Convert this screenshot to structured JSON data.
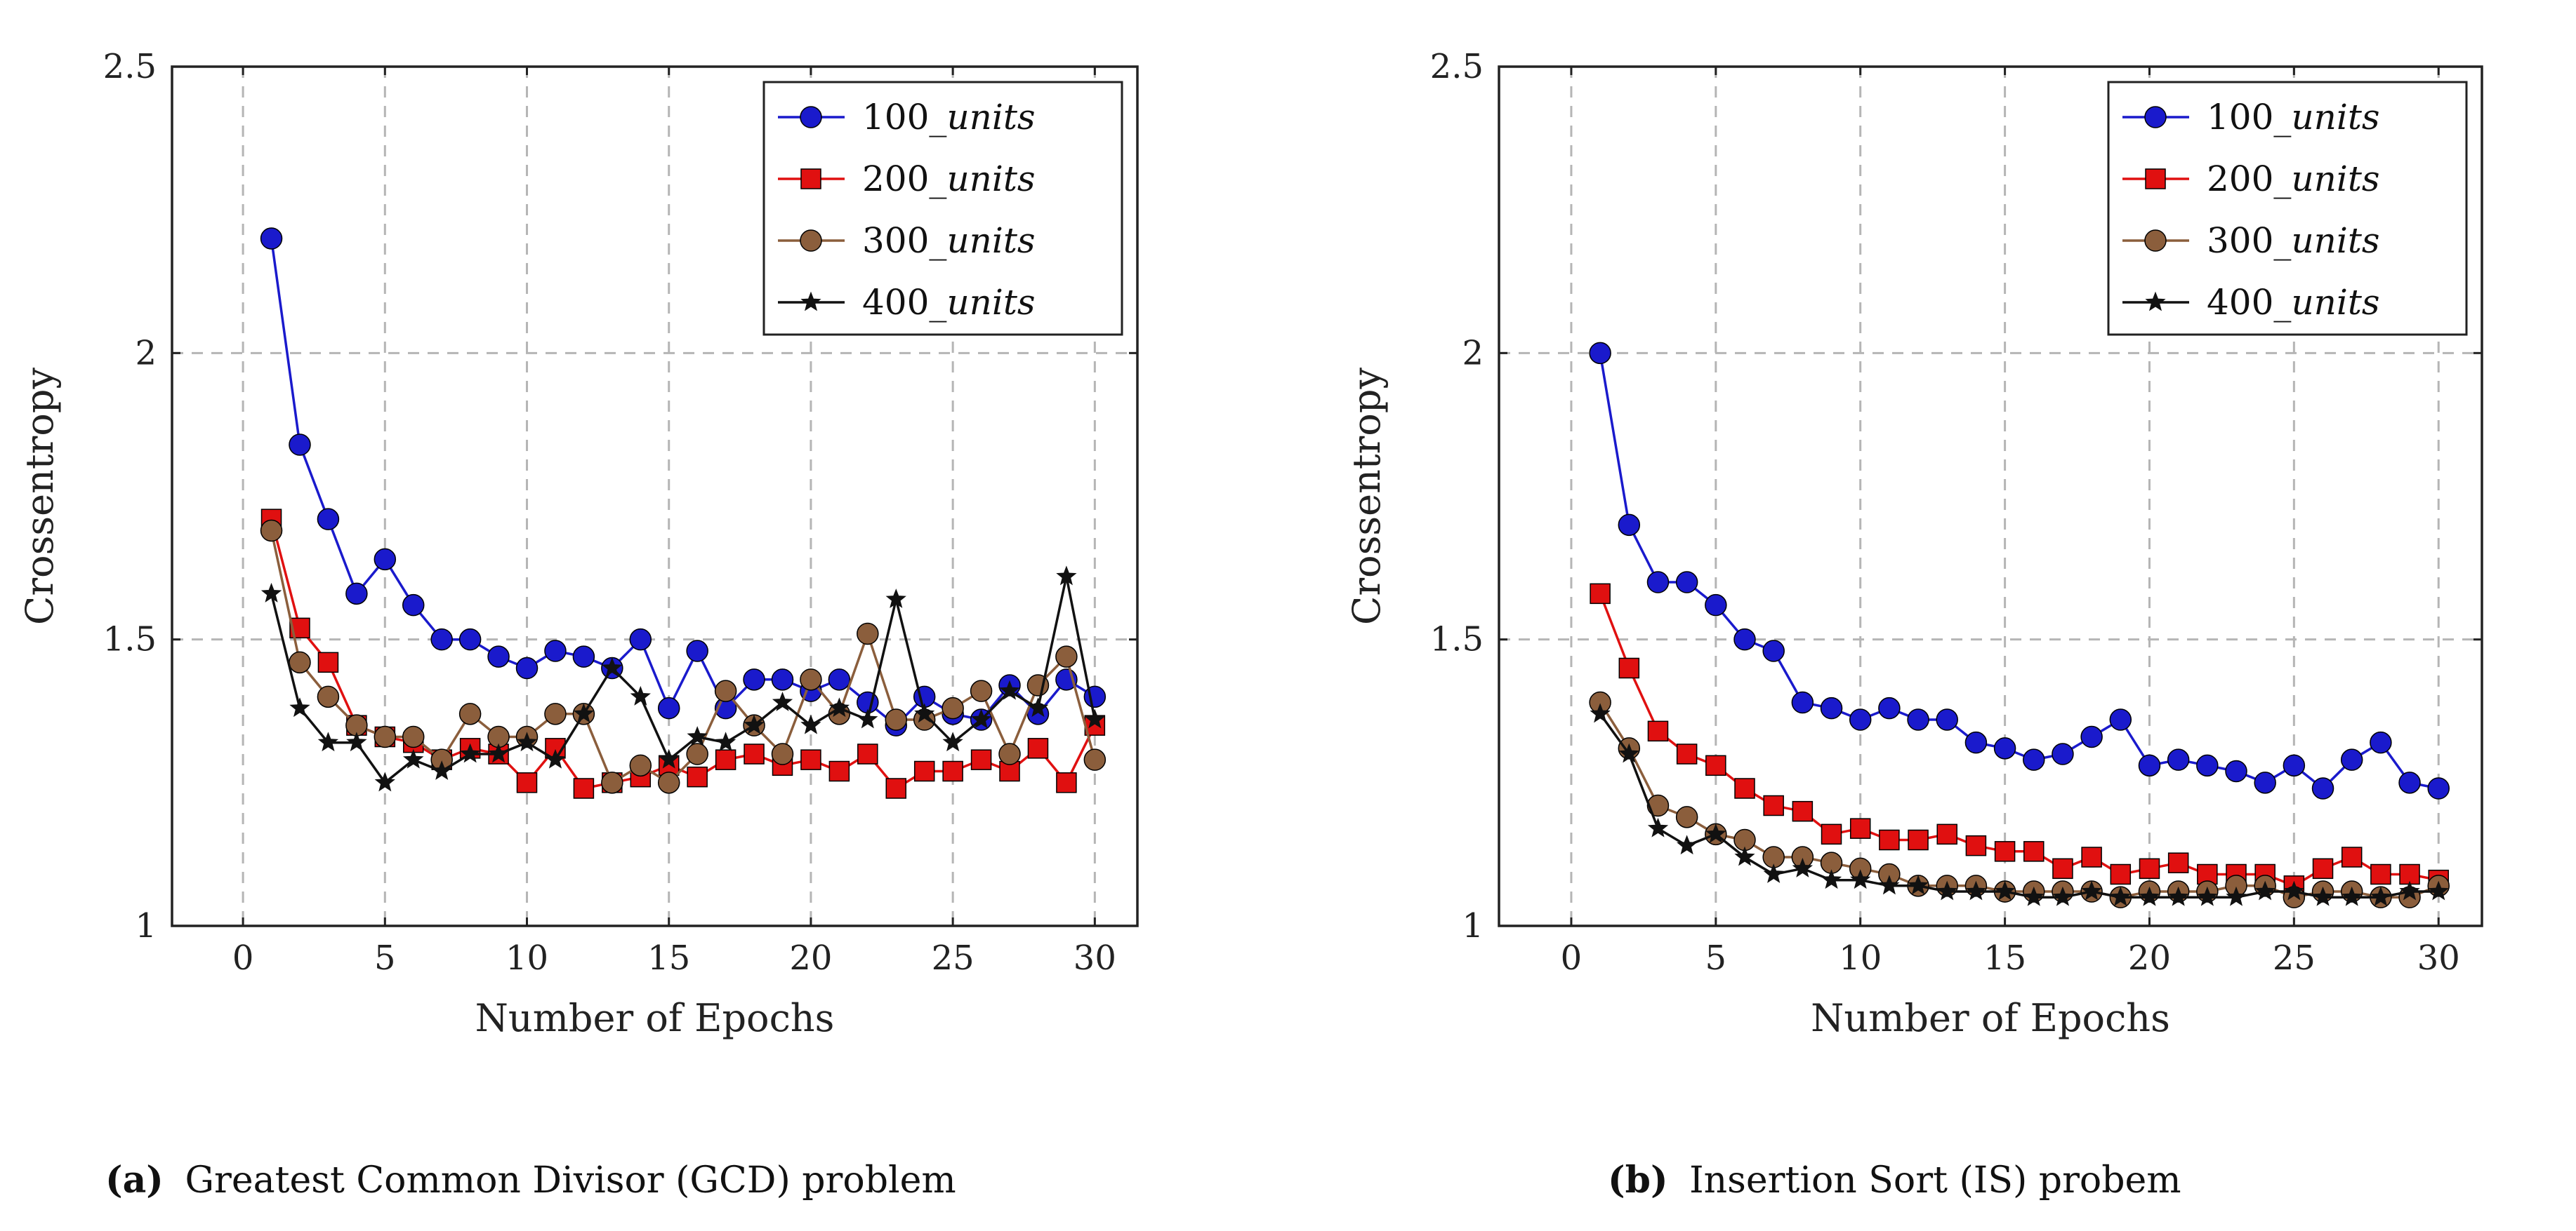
{
  "colors": {
    "100_units": "#1a1acc",
    "200_units": "#e01010",
    "300_units": "#8b5e3c",
    "400_units": "#111111",
    "grid": "#b5b5b5",
    "frame": "#222222"
  },
  "chart_data": [
    {
      "type": "line",
      "title": "",
      "caption_tag": "(a)",
      "caption": "Greatest Common Divisor (GCD) problem",
      "xlabel": "Number of Epochs",
      "ylabel": "Crossentropy",
      "xlim": [
        -2.5,
        31.5
      ],
      "ylim": [
        1,
        2.5
      ],
      "xticks": [
        0,
        5,
        10,
        15,
        20,
        25,
        30
      ],
      "yticks": [
        1,
        1.5,
        2,
        2.5
      ],
      "ytick_labels": [
        "1",
        "1.5",
        "2",
        "2.5"
      ],
      "grid": true,
      "legend_position": "top-right",
      "x": [
        1,
        2,
        3,
        4,
        5,
        6,
        7,
        8,
        9,
        10,
        11,
        12,
        13,
        14,
        15,
        16,
        17,
        18,
        19,
        20,
        21,
        22,
        23,
        24,
        25,
        26,
        27,
        28,
        29,
        30
      ],
      "series": [
        {
          "name": "100",
          "suffix": "units",
          "key": "100_units",
          "marker": "circle",
          "values": [
            2.2,
            1.84,
            1.71,
            1.58,
            1.64,
            1.56,
            1.5,
            1.5,
            1.47,
            1.45,
            1.48,
            1.47,
            1.45,
            1.5,
            1.38,
            1.48,
            1.38,
            1.43,
            1.43,
            1.41,
            1.43,
            1.39,
            1.35,
            1.4,
            1.37,
            1.36,
            1.42,
            1.37,
            1.43,
            1.4
          ]
        },
        {
          "name": "200",
          "suffix": "units",
          "key": "200_units",
          "marker": "square",
          "values": [
            1.71,
            1.52,
            1.46,
            1.35,
            1.33,
            1.32,
            1.29,
            1.31,
            1.3,
            1.25,
            1.31,
            1.24,
            1.25,
            1.26,
            1.28,
            1.26,
            1.29,
            1.3,
            1.28,
            1.29,
            1.27,
            1.3,
            1.24,
            1.27,
            1.27,
            1.29,
            1.27,
            1.31,
            1.25,
            1.35
          ]
        },
        {
          "name": "300",
          "suffix": "units",
          "key": "300_units",
          "marker": "pentagon",
          "values": [
            1.69,
            1.46,
            1.4,
            1.35,
            1.33,
            1.33,
            1.29,
            1.37,
            1.33,
            1.33,
            1.37,
            1.37,
            1.25,
            1.28,
            1.25,
            1.3,
            1.41,
            1.35,
            1.3,
            1.43,
            1.37,
            1.51,
            1.36,
            1.36,
            1.38,
            1.41,
            1.3,
            1.42,
            1.47,
            1.29
          ]
        },
        {
          "name": "400",
          "suffix": "units",
          "key": "400_units",
          "marker": "star",
          "values": [
            1.58,
            1.38,
            1.32,
            1.32,
            1.25,
            1.29,
            1.27,
            1.3,
            1.3,
            1.32,
            1.29,
            1.37,
            1.45,
            1.4,
            1.29,
            1.33,
            1.32,
            1.35,
            1.39,
            1.35,
            1.38,
            1.36,
            1.57,
            1.37,
            1.32,
            1.36,
            1.41,
            1.38,
            1.61,
            1.36
          ]
        }
      ]
    },
    {
      "type": "line",
      "title": "",
      "caption_tag": "(b)",
      "caption": "Insertion Sort (IS) probem",
      "xlabel": "Number of Epochs",
      "ylabel": "Crossentropy",
      "xlim": [
        -2.5,
        31.5
      ],
      "ylim": [
        1,
        2.5
      ],
      "xticks": [
        0,
        5,
        10,
        15,
        20,
        25,
        30
      ],
      "yticks": [
        1,
        1.5,
        2,
        2.5
      ],
      "ytick_labels": [
        "1",
        "1.5",
        "2",
        "2.5"
      ],
      "grid": true,
      "legend_position": "top-right",
      "x": [
        1,
        2,
        3,
        4,
        5,
        6,
        7,
        8,
        9,
        10,
        11,
        12,
        13,
        14,
        15,
        16,
        17,
        18,
        19,
        20,
        21,
        22,
        23,
        24,
        25,
        26,
        27,
        28,
        29,
        30
      ],
      "series": [
        {
          "name": "100",
          "suffix": "units",
          "key": "100_units",
          "marker": "circle",
          "values": [
            2.0,
            1.7,
            1.6,
            1.6,
            1.56,
            1.5,
            1.48,
            1.39,
            1.38,
            1.36,
            1.38,
            1.36,
            1.36,
            1.32,
            1.31,
            1.29,
            1.3,
            1.33,
            1.36,
            1.28,
            1.29,
            1.28,
            1.27,
            1.25,
            1.28,
            1.24,
            1.29,
            1.32,
            1.25,
            1.24
          ]
        },
        {
          "name": "200",
          "suffix": "units",
          "key": "200_units",
          "marker": "square",
          "values": [
            1.58,
            1.45,
            1.34,
            1.3,
            1.28,
            1.24,
            1.21,
            1.2,
            1.16,
            1.17,
            1.15,
            1.15,
            1.16,
            1.14,
            1.13,
            1.13,
            1.1,
            1.12,
            1.09,
            1.1,
            1.11,
            1.09,
            1.09,
            1.09,
            1.07,
            1.1,
            1.12,
            1.09,
            1.09,
            1.08
          ]
        },
        {
          "name": "300",
          "suffix": "units",
          "key": "300_units",
          "marker": "pentagon",
          "values": [
            1.39,
            1.31,
            1.21,
            1.19,
            1.16,
            1.15,
            1.12,
            1.12,
            1.11,
            1.1,
            1.09,
            1.07,
            1.07,
            1.07,
            1.06,
            1.06,
            1.06,
            1.06,
            1.05,
            1.06,
            1.06,
            1.06,
            1.07,
            1.07,
            1.05,
            1.06,
            1.06,
            1.05,
            1.05,
            1.07
          ]
        },
        {
          "name": "400",
          "suffix": "units",
          "key": "400_units",
          "marker": "star",
          "values": [
            1.37,
            1.3,
            1.17,
            1.14,
            1.16,
            1.12,
            1.09,
            1.1,
            1.08,
            1.08,
            1.07,
            1.07,
            1.06,
            1.06,
            1.06,
            1.05,
            1.05,
            1.06,
            1.05,
            1.05,
            1.05,
            1.05,
            1.05,
            1.06,
            1.06,
            1.05,
            1.05,
            1.05,
            1.06,
            1.06
          ]
        }
      ]
    }
  ]
}
